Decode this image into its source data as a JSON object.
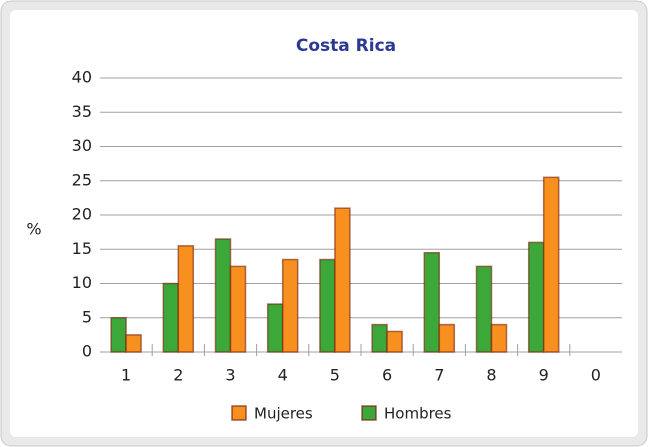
{
  "chart_data": {
    "type": "bar",
    "title": "Costa Rica",
    "y_label": "%",
    "categories": [
      "1",
      "2",
      "3",
      "4",
      "5",
      "6",
      "7",
      "8",
      "9",
      "0"
    ],
    "series": [
      {
        "name": "Hombres",
        "color": "#3da83a",
        "values": [
          5,
          10,
          16.5,
          7,
          13.5,
          4,
          14.5,
          12.5,
          16,
          0
        ]
      },
      {
        "name": "Mujeres",
        "color": "#f7901e",
        "values": [
          2.5,
          15.5,
          12.5,
          13.5,
          21,
          3,
          4,
          4,
          25.5,
          0
        ]
      }
    ],
    "ylim": [
      0,
      40
    ],
    "yticks": [
      0,
      5,
      10,
      15,
      20,
      25,
      30,
      35,
      40
    ],
    "grid": true,
    "legend": "bottom"
  }
}
